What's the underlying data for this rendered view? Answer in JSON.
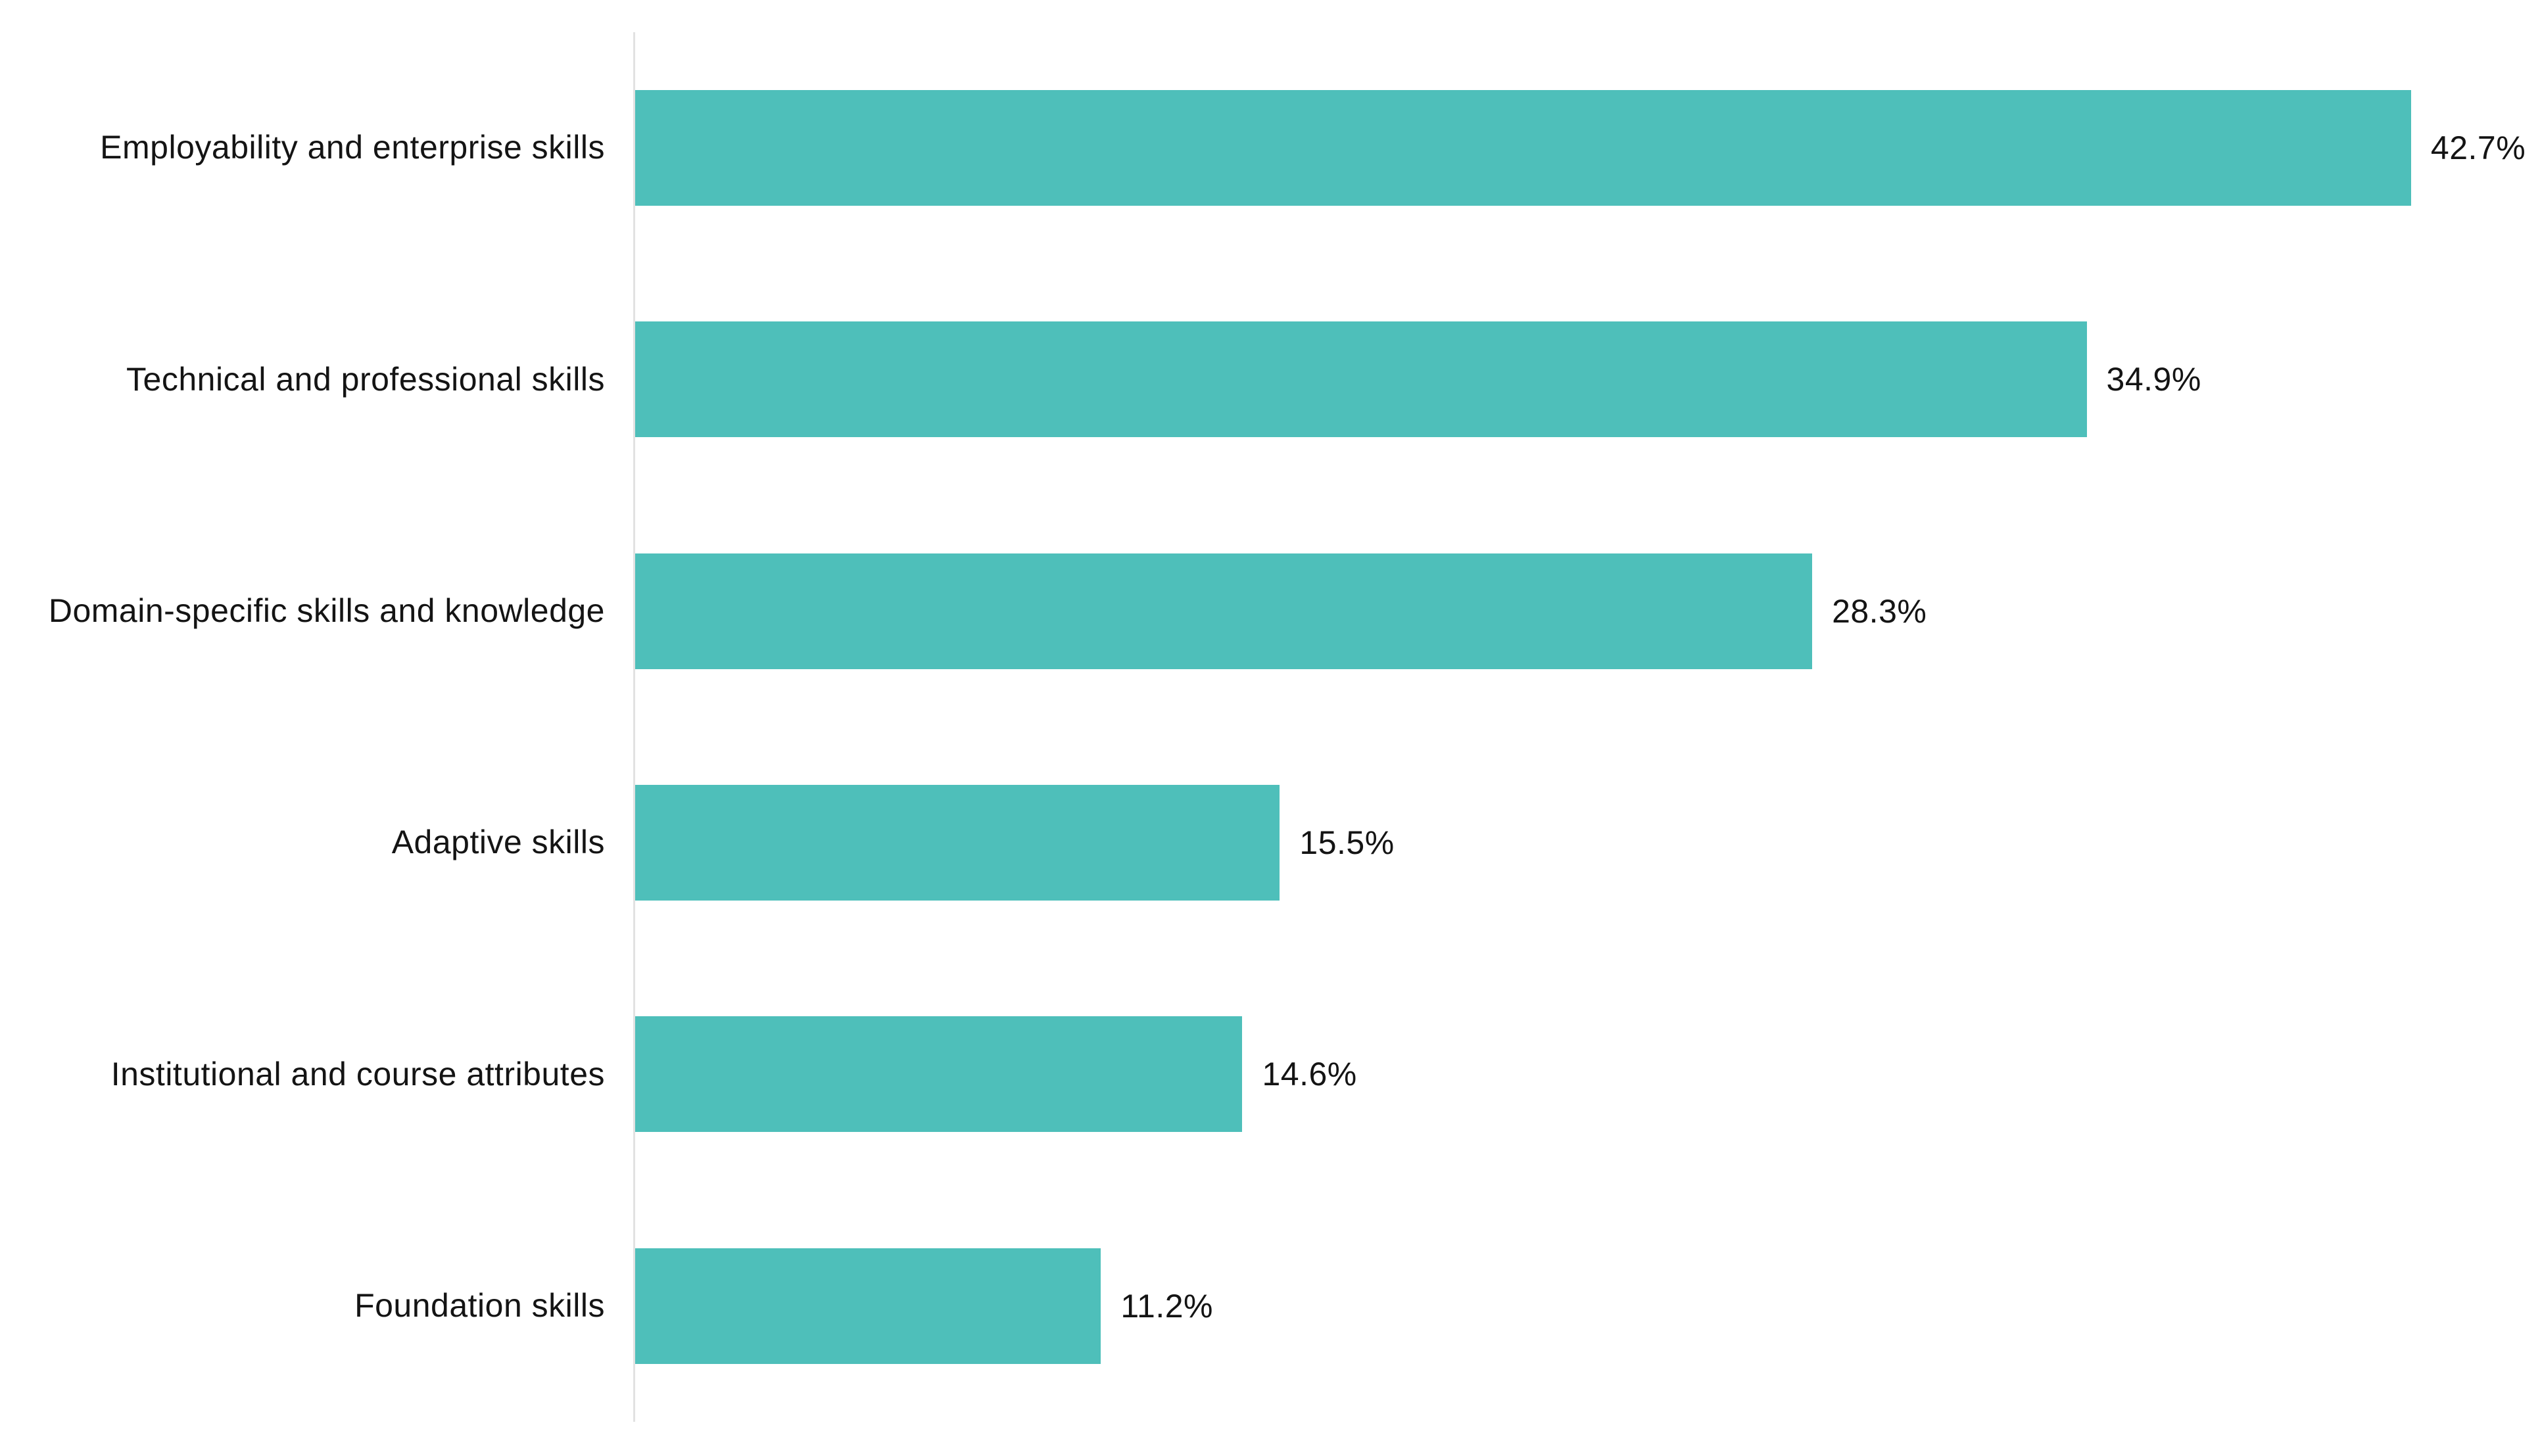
{
  "chart_data": {
    "type": "bar",
    "orientation": "horizontal",
    "categories": [
      "Employability and enterprise skills",
      "Technical and professional skills",
      "Domain-specific skills and knowledge",
      "Adaptive skills",
      "Institutional and course attributes",
      "Foundation skills"
    ],
    "values": [
      42.7,
      34.9,
      28.3,
      15.5,
      14.6,
      11.2
    ],
    "value_labels": [
      "42.7%",
      "34.9%",
      "28.3%",
      "15.5%",
      "14.6%",
      "11.2%"
    ],
    "xlim": [
      0,
      45.8
    ],
    "grid": false,
    "legend": false,
    "bar_color": "#4ebfba",
    "axis_line_color": "#e2e2e2",
    "text_color": "#141414"
  }
}
